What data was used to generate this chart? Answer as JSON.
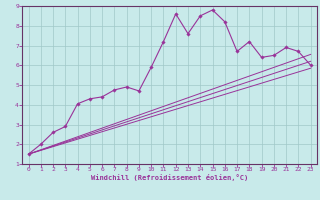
{
  "xlabel": "Windchill (Refroidissement éolien,°C)",
  "bg_color": "#c8eaea",
  "grid_color": "#a0c8c8",
  "line_color": "#993399",
  "spine_color": "#663366",
  "xlim": [
    -0.5,
    23.5
  ],
  "ylim": [
    1,
    9
  ],
  "xticks": [
    0,
    1,
    2,
    3,
    4,
    5,
    6,
    7,
    8,
    9,
    10,
    11,
    12,
    13,
    14,
    15,
    16,
    17,
    18,
    19,
    20,
    21,
    22,
    23
  ],
  "yticks": [
    1,
    2,
    3,
    4,
    5,
    6,
    7,
    8,
    9
  ],
  "series1_x": [
    0,
    1,
    2,
    3,
    4,
    5,
    6,
    7,
    8,
    9,
    10,
    11,
    12,
    13,
    14,
    15,
    16,
    17,
    18,
    19,
    20,
    21,
    22,
    23
  ],
  "series1_y": [
    1.5,
    2.0,
    2.6,
    2.9,
    4.05,
    4.3,
    4.4,
    4.75,
    4.9,
    4.7,
    5.9,
    7.2,
    8.6,
    7.6,
    8.5,
    8.8,
    8.2,
    6.7,
    7.2,
    6.4,
    6.5,
    6.9,
    6.7,
    6.0
  ],
  "line1_x": [
    0,
    23
  ],
  "line1_y": [
    1.5,
    5.85
  ],
  "line2_x": [
    0,
    23
  ],
  "line2_y": [
    1.5,
    6.2
  ],
  "line3_x": [
    0,
    23
  ],
  "line3_y": [
    1.5,
    6.55
  ]
}
